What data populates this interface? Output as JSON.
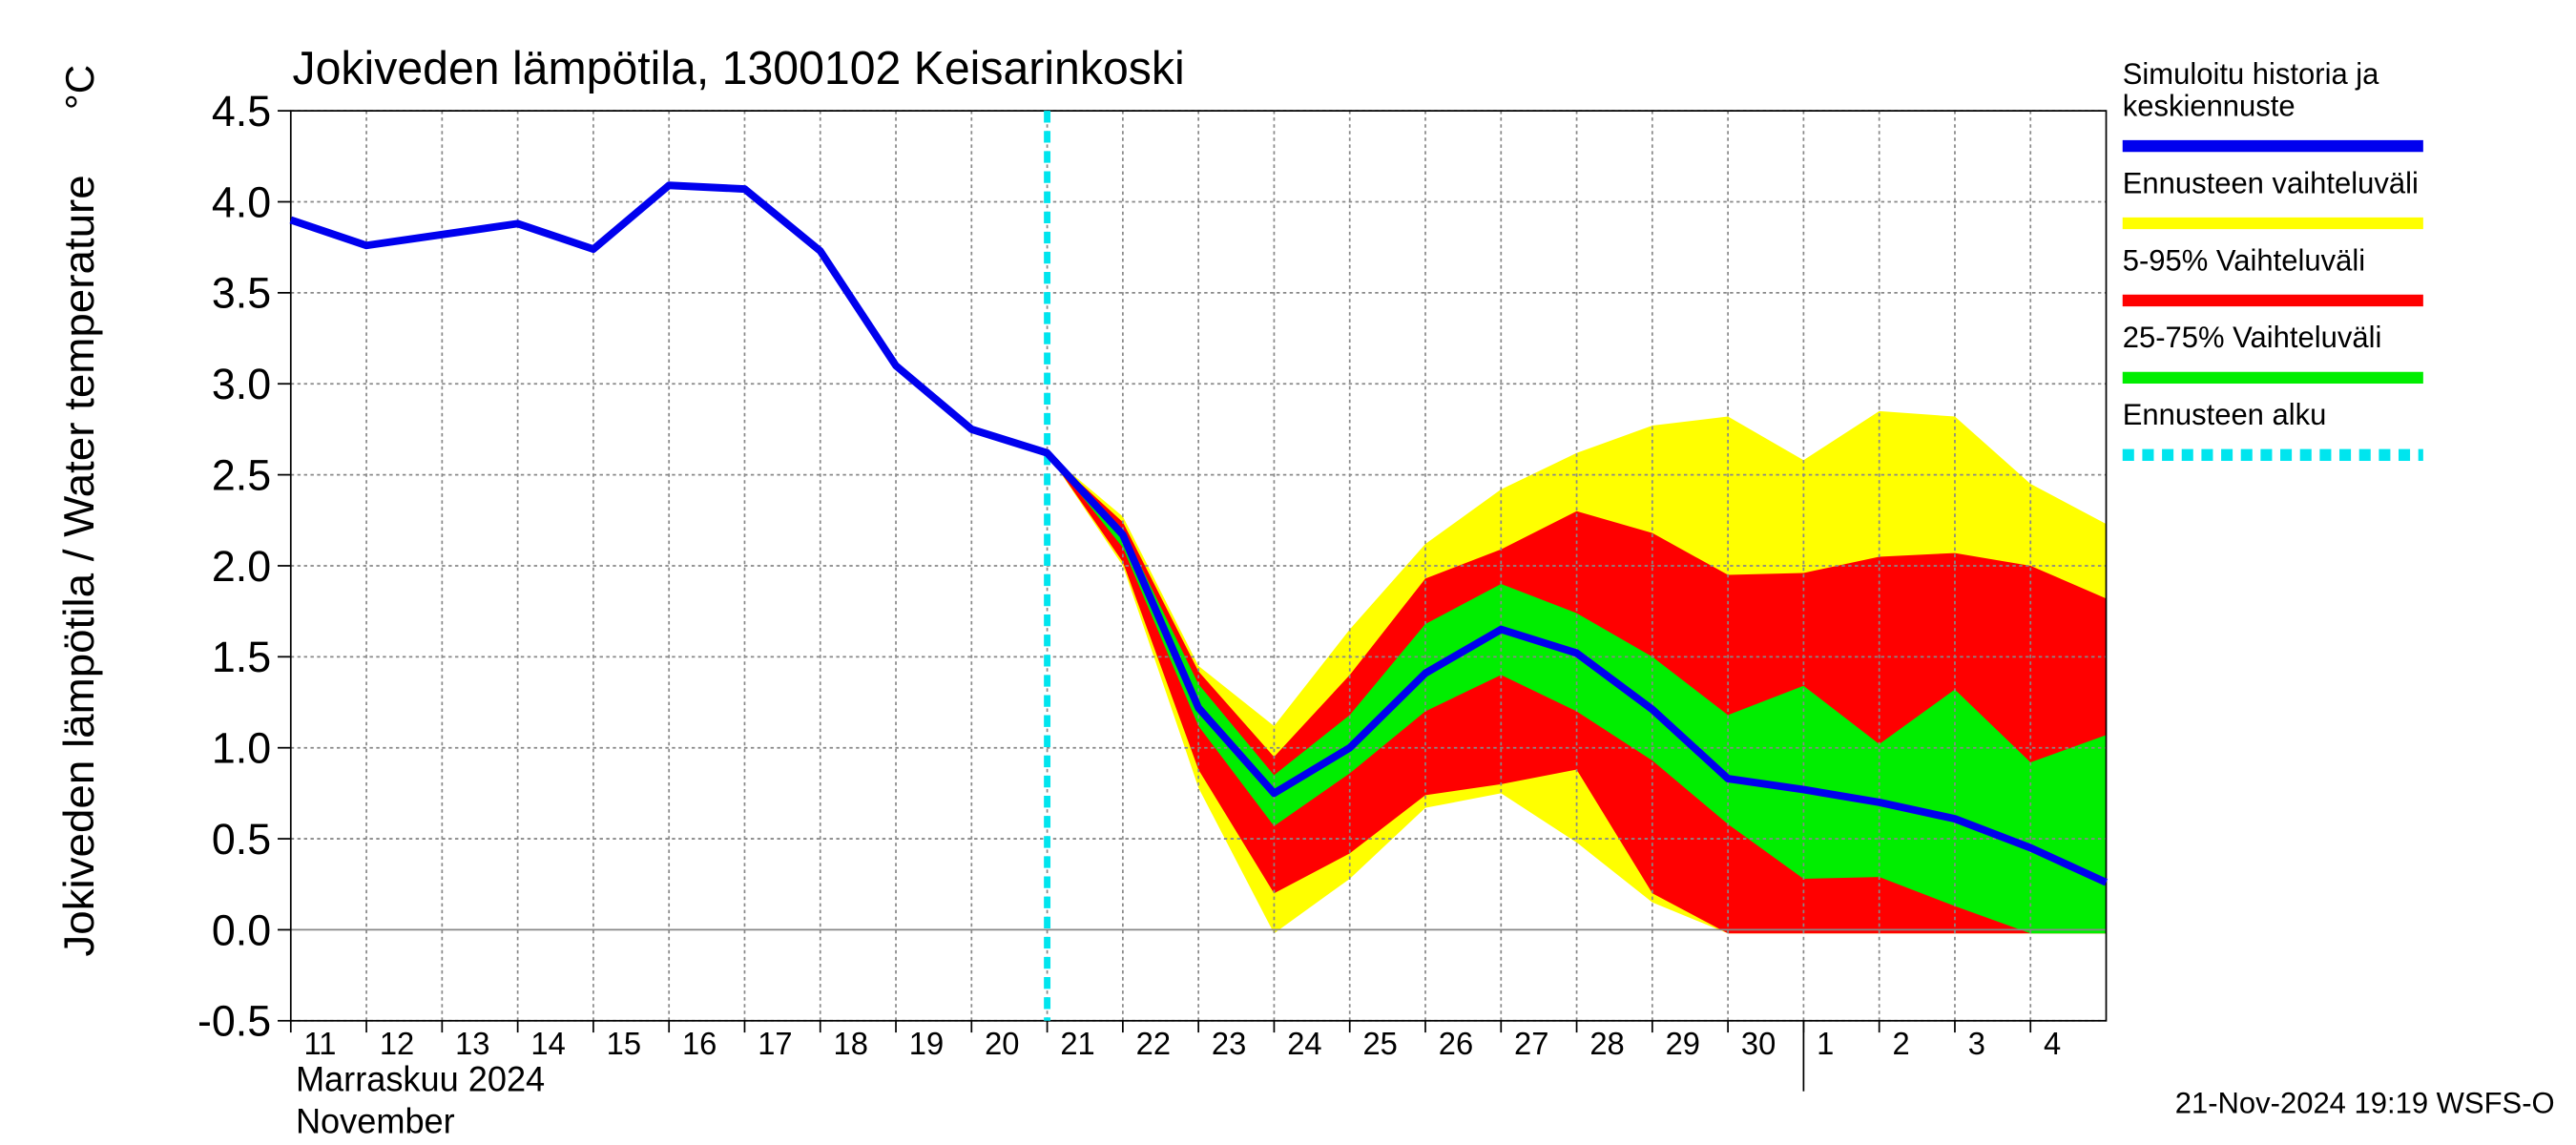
{
  "chart_data": {
    "type": "line",
    "title": "Jokiveden lämpötila, 1300102 Keisarinkoski",
    "y_label": "Jokiveden lämpötila / Water temperature",
    "y_unit": "°C",
    "x_label_lines": [
      "Marraskuu 2024",
      "November"
    ],
    "footer": "21-Nov-2024 19:19 WSFS-O",
    "grid": true,
    "ylim": [
      -0.5,
      4.5
    ],
    "yticks": [
      -0.5,
      {
        "value": 0,
        "label": "0.0"
      },
      0.5,
      {
        "value": 1,
        "label": "1.0"
      },
      1.5,
      {
        "value": 2,
        "label": "2.0"
      },
      2.5,
      {
        "value": 3,
        "label": "3.0"
      },
      3.5,
      {
        "value": 4,
        "label": "4.0"
      },
      4.5
    ],
    "xlim": [
      "2024-11-11",
      "2024-12-05"
    ],
    "xticks": [
      {
        "value": "2024-11-11",
        "label": "11"
      },
      {
        "value": "2024-11-12",
        "label": "12"
      },
      {
        "value": "2024-11-13",
        "label": "13"
      },
      {
        "value": "2024-11-14",
        "label": "14"
      },
      {
        "value": "2024-11-15",
        "label": "15"
      },
      {
        "value": "2024-11-16",
        "label": "16"
      },
      {
        "value": "2024-11-17",
        "label": "17"
      },
      {
        "value": "2024-11-18",
        "label": "18"
      },
      {
        "value": "2024-11-19",
        "label": "19"
      },
      {
        "value": "2024-11-20",
        "label": "20"
      },
      {
        "value": "2024-11-21",
        "label": "21"
      },
      {
        "value": "2024-11-22",
        "label": "22"
      },
      {
        "value": "2024-11-23",
        "label": "23"
      },
      {
        "value": "2024-11-24",
        "label": "24"
      },
      {
        "value": "2024-11-25",
        "label": "25"
      },
      {
        "value": "2024-11-26",
        "label": "26"
      },
      {
        "value": "2024-11-27",
        "label": "27"
      },
      {
        "value": "2024-11-28",
        "label": "28"
      },
      {
        "value": "2024-11-29",
        "label": "29"
      },
      {
        "value": "2024-11-30",
        "label": "30"
      },
      {
        "value": "2024-12-01",
        "label": "1"
      },
      {
        "value": "2024-12-02",
        "label": "2"
      },
      {
        "value": "2024-12-03",
        "label": "3"
      },
      {
        "value": "2024-12-04",
        "label": "4"
      }
    ],
    "forecast_start": "2024-11-21",
    "forecast_start_name": "Ennusteen alku",
    "forecast_start_color": "#00e5ee",
    "x": [
      "2024-11-11",
      "2024-11-12",
      "2024-11-13",
      "2024-11-14",
      "2024-11-15",
      "2024-11-16",
      "2024-11-17",
      "2024-11-18",
      "2024-11-19",
      "2024-11-20",
      "2024-11-21",
      "2024-11-22",
      "2024-11-23",
      "2024-11-24",
      "2024-11-25",
      "2024-11-26",
      "2024-11-27",
      "2024-11-28",
      "2024-11-29",
      "2024-11-30",
      "2024-12-01",
      "2024-12-02",
      "2024-12-03",
      "2024-12-04",
      "2024-12-05"
    ],
    "bands": [
      {
        "name": "Ennusteen vaihteluväli",
        "color": "#ffff00",
        "x": [
          "2024-11-21",
          "2024-11-22",
          "2024-11-23",
          "2024-11-24",
          "2024-11-25",
          "2024-11-26",
          "2024-11-27",
          "2024-11-28",
          "2024-11-29",
          "2024-11-30",
          "2024-12-01",
          "2024-12-02",
          "2024-12-03",
          "2024-12-04",
          "2024-12-05"
        ],
        "upper": [
          2.62,
          2.27,
          1.45,
          1.12,
          1.65,
          2.12,
          2.42,
          2.62,
          2.77,
          2.82,
          2.58,
          2.85,
          2.82,
          2.45,
          2.23
        ],
        "lower": [
          2.62,
          2.0,
          0.78,
          -0.02,
          0.28,
          0.67,
          0.75,
          0.48,
          0.15,
          -0.02,
          -0.02,
          -0.02,
          -0.02,
          -0.02,
          -0.02
        ]
      },
      {
        "name": "5-95% Vaihteluväli",
        "color": "#ff0000",
        "x": [
          "2024-11-21",
          "2024-11-22",
          "2024-11-23",
          "2024-11-24",
          "2024-11-25",
          "2024-11-26",
          "2024-11-27",
          "2024-11-28",
          "2024-11-29",
          "2024-11-30",
          "2024-12-01",
          "2024-12-02",
          "2024-12-03",
          "2024-12-04",
          "2024-12-05"
        ],
        "upper": [
          2.62,
          2.24,
          1.42,
          0.95,
          1.4,
          1.93,
          2.09,
          2.3,
          2.18,
          1.95,
          1.96,
          2.05,
          2.07,
          2.0,
          1.82
        ],
        "lower": [
          2.62,
          2.02,
          0.88,
          0.2,
          0.42,
          0.74,
          0.8,
          0.88,
          0.2,
          -0.02,
          -0.02,
          -0.02,
          -0.02,
          -0.02,
          -0.02
        ]
      },
      {
        "name": "25-75% Vaihteluväli",
        "color": "#00ee00",
        "x": [
          "2024-11-21",
          "2024-11-22",
          "2024-11-23",
          "2024-11-24",
          "2024-11-25",
          "2024-11-26",
          "2024-11-27",
          "2024-11-28",
          "2024-11-29",
          "2024-11-30",
          "2024-12-01",
          "2024-12-02",
          "2024-12-03",
          "2024-12-04",
          "2024-12-05"
        ],
        "upper": [
          2.62,
          2.2,
          1.35,
          0.85,
          1.18,
          1.68,
          1.9,
          1.74,
          1.5,
          1.18,
          1.34,
          1.02,
          1.32,
          0.92,
          1.07
        ],
        "lower": [
          2.62,
          2.1,
          1.12,
          0.57,
          0.86,
          1.2,
          1.4,
          1.2,
          0.93,
          0.58,
          0.28,
          0.29,
          0.13,
          -0.02,
          -0.02
        ]
      }
    ],
    "series": [
      {
        "name": "Simuloitu historia ja keskiennuste",
        "color": "#0000ee",
        "values": [
          3.9,
          3.76,
          3.82,
          3.88,
          3.74,
          4.09,
          4.07,
          3.73,
          3.1,
          2.75,
          2.62,
          2.17,
          1.22,
          0.75,
          1.0,
          1.41,
          1.65,
          1.52,
          1.21,
          0.83,
          0.77,
          0.7,
          0.61,
          0.45,
          0.26
        ]
      }
    ]
  }
}
